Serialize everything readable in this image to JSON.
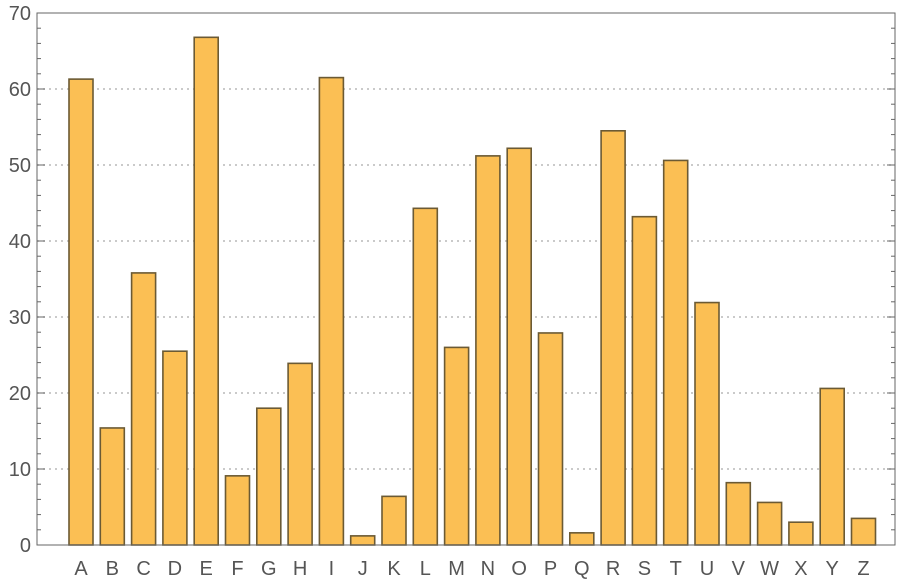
{
  "chart_data": {
    "type": "bar",
    "categories": [
      "A",
      "B",
      "C",
      "D",
      "E",
      "F",
      "G",
      "H",
      "I",
      "J",
      "K",
      "L",
      "M",
      "N",
      "O",
      "P",
      "Q",
      "R",
      "S",
      "T",
      "U",
      "V",
      "W",
      "X",
      "Y",
      "Z"
    ],
    "values": [
      61.3,
      15.4,
      35.8,
      25.5,
      66.8,
      9.1,
      18.0,
      23.9,
      61.5,
      1.2,
      6.4,
      44.3,
      26.0,
      51.2,
      52.2,
      27.9,
      1.6,
      54.5,
      43.2,
      50.6,
      31.9,
      8.2,
      5.6,
      3.0,
      20.6,
      3.5
    ],
    "title": "",
    "xlabel": "",
    "ylabel": "",
    "ylim": [
      0,
      70
    ],
    "yticks": [
      0,
      10,
      20,
      30,
      40,
      50,
      60,
      70
    ],
    "grid": "horizontal dotted",
    "colors": {
      "bar_fill": "#fbbf54",
      "bar_edge": "#6b5a34",
      "grid": "#b8b8b8",
      "frame": "#666666",
      "text": "#555555"
    }
  }
}
